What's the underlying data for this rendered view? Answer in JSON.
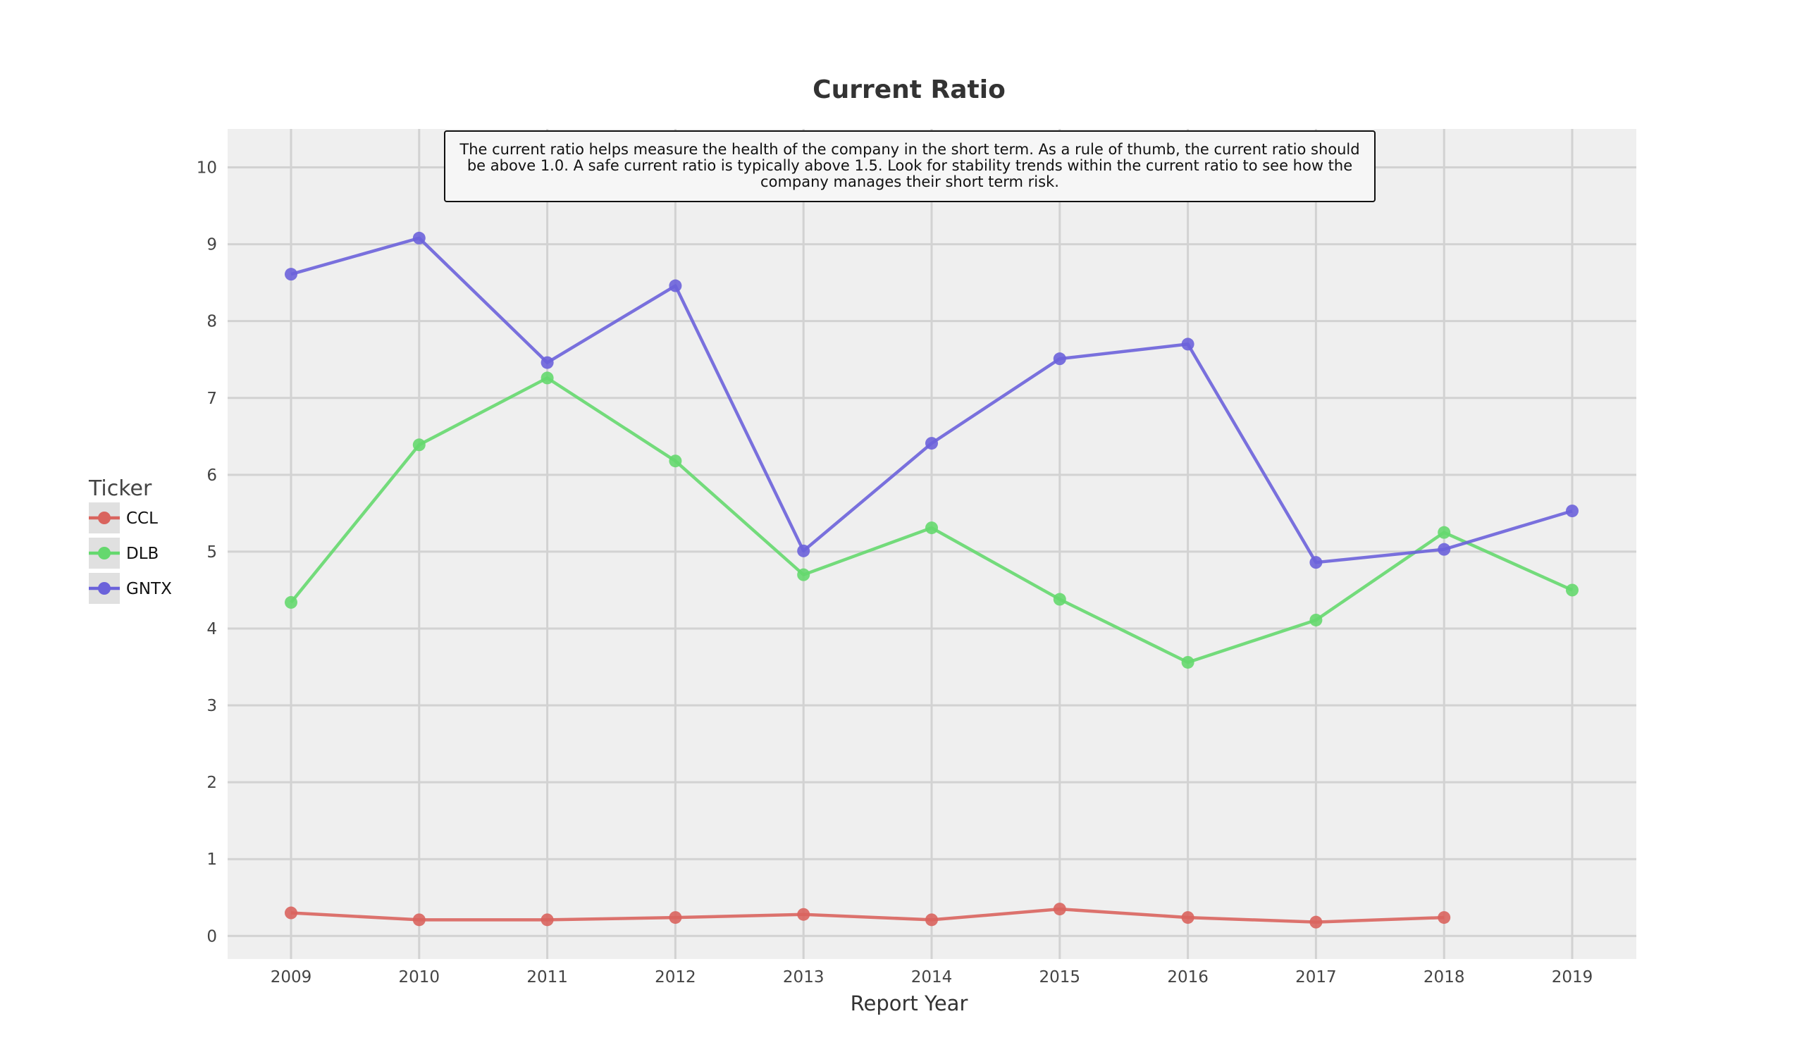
{
  "chart_data": {
    "type": "line",
    "title": "Current Ratio",
    "xlabel": "Report Year",
    "ylabel": "",
    "x": [
      2009,
      2010,
      2011,
      2012,
      2013,
      2014,
      2015,
      2016,
      2017,
      2018,
      2019
    ],
    "ylim": [
      -0.3,
      10.5
    ],
    "yticks": [
      0,
      1,
      2,
      3,
      4,
      5,
      6,
      7,
      8,
      9,
      10
    ],
    "grid": true,
    "legend": {
      "title": "Ticker",
      "placement": "left"
    },
    "annotation": "The current ratio helps measure the health of the company in the short term. As a rule of thumb, the current ratio should be above 1.0. A safe current ratio is typically above 1.5. Look for stability trends within the current ratio to see how the company manages their short term risk.",
    "series": [
      {
        "name": "CCL",
        "color": "#d9645e",
        "values": [
          0.3,
          0.21,
          0.21,
          0.24,
          0.28,
          0.21,
          0.35,
          0.24,
          0.18,
          0.24,
          null
        ]
      },
      {
        "name": "DLB",
        "color": "#65d86e",
        "values": [
          4.34,
          6.39,
          7.26,
          6.18,
          4.7,
          5.31,
          4.38,
          3.56,
          4.11,
          5.25,
          4.5
        ]
      },
      {
        "name": "GNTX",
        "color": "#6b62da",
        "values": [
          8.61,
          9.08,
          7.46,
          8.46,
          5.01,
          6.41,
          7.51,
          7.7,
          4.86,
          5.03,
          5.53
        ]
      }
    ]
  }
}
